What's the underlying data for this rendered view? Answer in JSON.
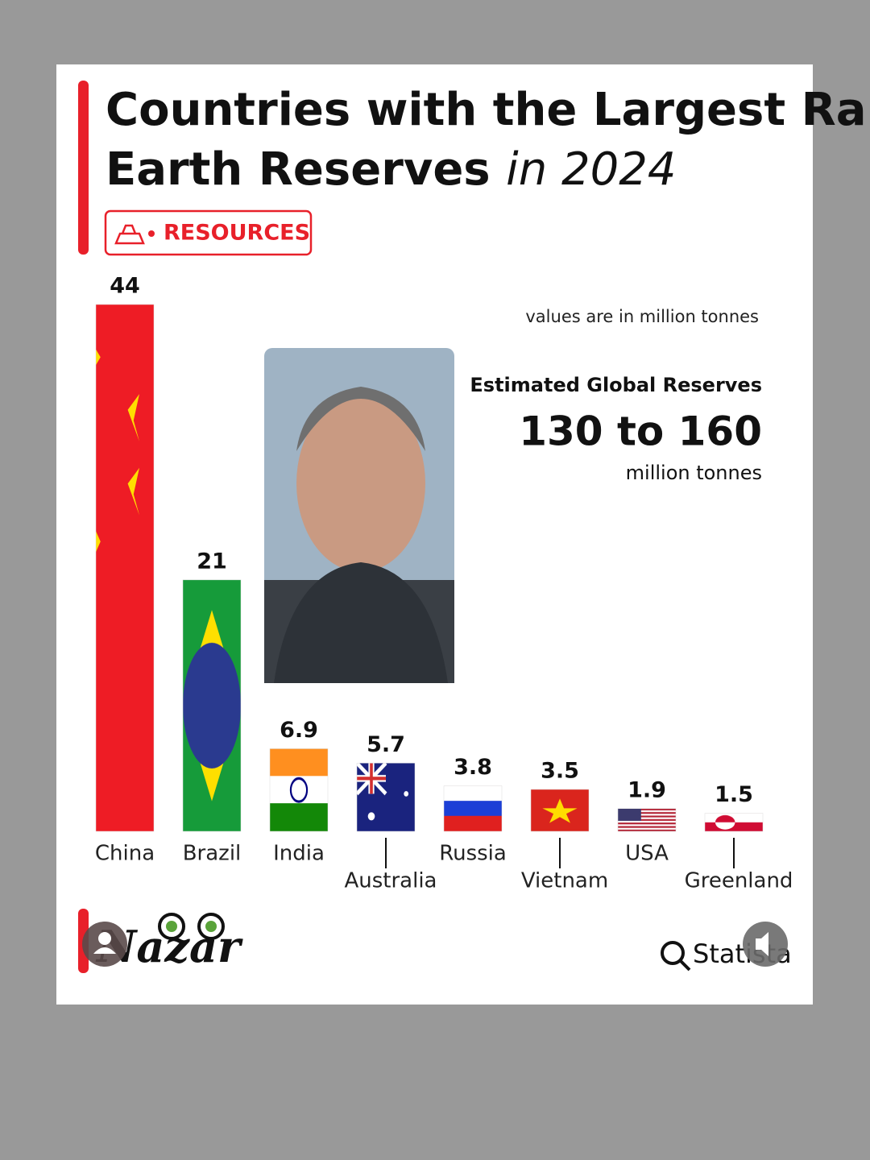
{
  "chart_data": {
    "type": "bar",
    "title": "Countries with the Largest Rare Earth Reserves",
    "title_emphasis": "in 2024",
    "badge": "RESOURCES",
    "unit_note": "values are in million tonnes",
    "global_label": "Estimated  Global Reserves",
    "global_value": "130 to 160",
    "global_unit": "million tonnes",
    "categories": [
      "China",
      "Brazil",
      "India",
      "Australia",
      "Russia",
      "Vietnam",
      "USA",
      "Greenland"
    ],
    "values": [
      44,
      21,
      6.9,
      5.7,
      3.8,
      3.5,
      1.9,
      1.5
    ],
    "brand": "Nazar",
    "source": "Statista"
  }
}
